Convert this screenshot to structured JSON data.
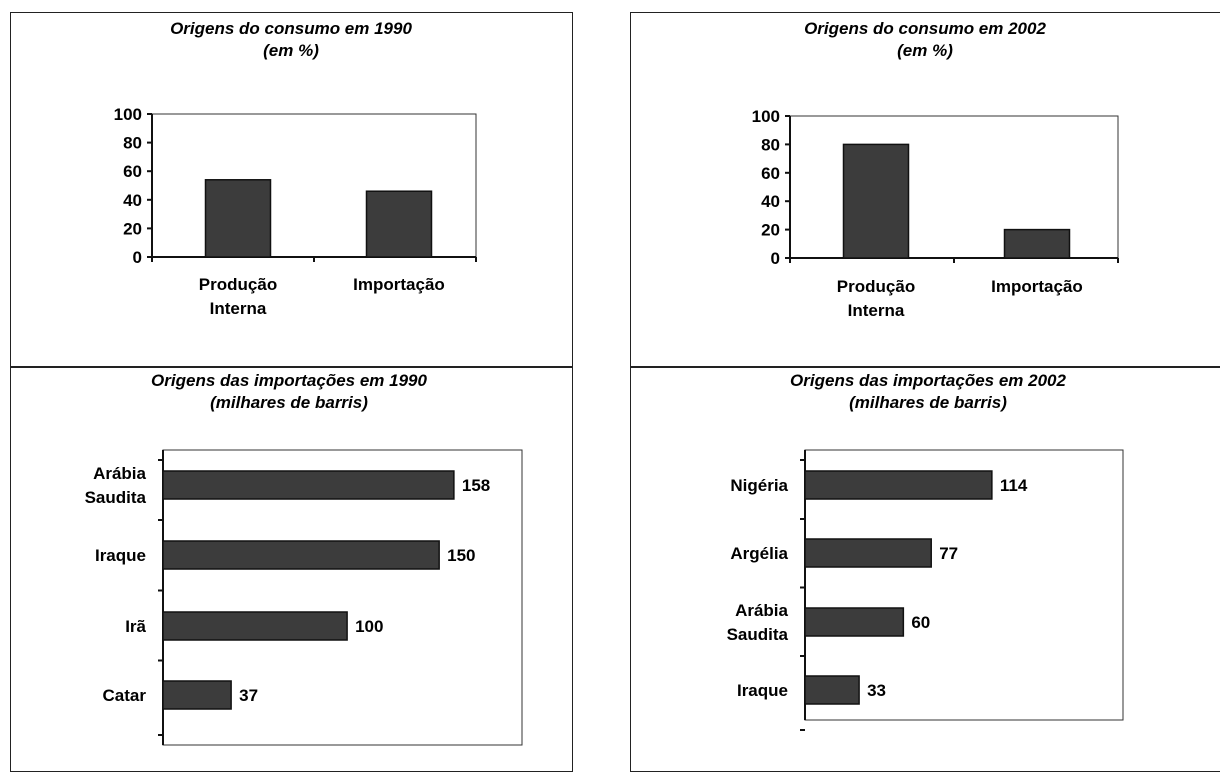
{
  "chart_data": [
    {
      "type": "bar",
      "title": "Origens do consumo em 1990",
      "subtitle": "(em %)",
      "categories": [
        [
          "Produção",
          "Interna"
        ],
        [
          "Importação"
        ]
      ],
      "values": [
        54,
        46
      ],
      "ylim": [
        0,
        100
      ],
      "yticks": [
        0,
        20,
        40,
        60,
        80,
        100
      ],
      "grid": false
    },
    {
      "type": "bar",
      "title": "Origens do consumo em 2002",
      "subtitle": "(em %)",
      "categories": [
        [
          "Produção",
          "Interna"
        ],
        [
          "Importação"
        ]
      ],
      "values": [
        80,
        20
      ],
      "ylim": [
        0,
        100
      ],
      "yticks": [
        0,
        20,
        40,
        60,
        80,
        100
      ],
      "grid": false
    },
    {
      "type": "bar",
      "orientation": "horizontal",
      "title": "Origens das importações em 1990",
      "subtitle": "(milhares de barris)",
      "categories": [
        [
          "Arábia",
          "Saudita"
        ],
        [
          "Iraque"
        ],
        [
          "Irã"
        ],
        [
          "Catar"
        ]
      ],
      "values": [
        158,
        150,
        100,
        37
      ],
      "value_labels": [
        "158",
        "150",
        "100",
        "37"
      ],
      "grid": false
    },
    {
      "type": "bar",
      "orientation": "horizontal",
      "title": "Origens das importações em 2002",
      "subtitle": "(milhares de barris)",
      "categories": [
        [
          "Nigéria"
        ],
        [
          "Argélia"
        ],
        [
          "Arábia",
          "Saudita"
        ],
        [
          "Iraque"
        ]
      ],
      "values": [
        114,
        77,
        60,
        33
      ],
      "value_labels": [
        "114",
        "77",
        "60",
        "33"
      ],
      "grid": false
    }
  ]
}
